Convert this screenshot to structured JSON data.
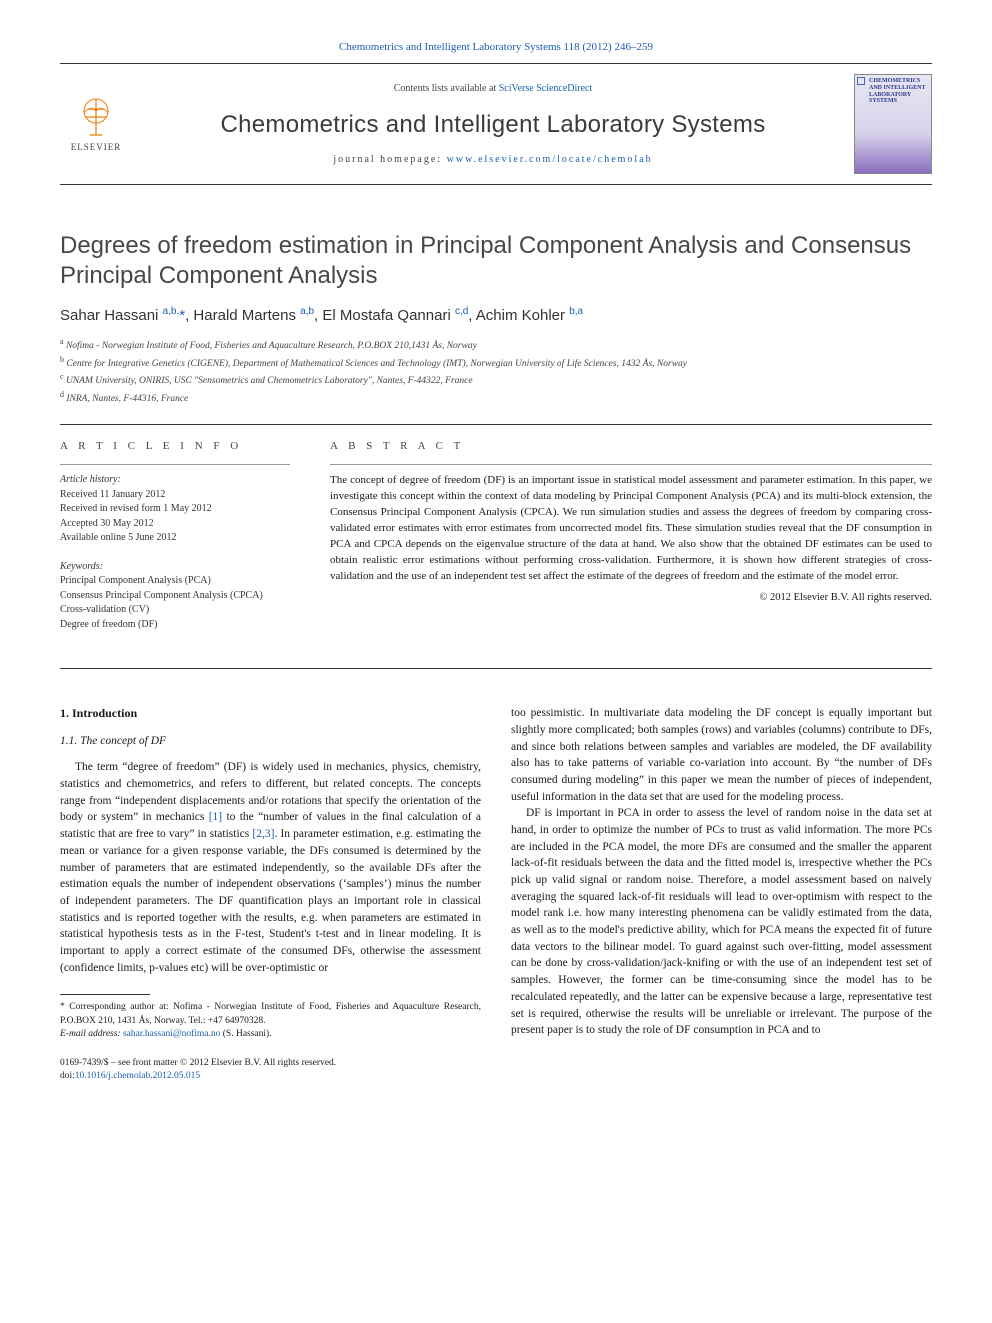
{
  "top_citation": "Chemometrics and Intelligent Laboratory Systems 118 (2012) 246–259",
  "header": {
    "contents_prefix": "Contents lists available at ",
    "contents_link": "SciVerse ScienceDirect",
    "journal_title": "Chemometrics and Intelligent Laboratory Systems",
    "homepage_prefix": "journal homepage: ",
    "homepage_link": "www.elsevier.com/locate/chemolab",
    "publisher": "ELSEVIER",
    "cover_text": "CHEMOMETRICS AND INTELLIGENT LABORATORY SYSTEMS"
  },
  "article": {
    "title": "Degrees of freedom estimation in Principal Component Analysis and Consensus Principal Component Analysis",
    "authors_html": "Sahar Hassani <sup>a,b,</sup><span class='star'>*</span>, Harald Martens <sup>a,b</sup>, El Mostafa Qannari <sup>c,d</sup>, Achim Kohler <sup>b,a</sup>",
    "affiliations": [
      {
        "key": "a",
        "text": "Nofima - Norwegian Institute of Food, Fisheries and Aquaculture Research, P.O.BOX 210,1431 Ås, Norway"
      },
      {
        "key": "b",
        "text": "Centre for Integrative Genetics (CIGENE), Department of Mathematical Sciences and Technology (IMT), Norwegian University of Life Sciences, 1432 Ås, Norway"
      },
      {
        "key": "c",
        "text": "UNAM University, ONIRIS, USC \"Sensometrics and Chemometrics Laboratory\", Nantes, F-44322, France"
      },
      {
        "key": "d",
        "text": "INRA, Nantes, F-44316, France"
      }
    ]
  },
  "article_info": {
    "heading": "A R T I C L E   I N F O",
    "history_label": "Article history:",
    "history": [
      "Received 11 January 2012",
      "Received in revised form 1 May 2012",
      "Accepted 30 May 2012",
      "Available online 5 June 2012"
    ],
    "keywords_label": "Keywords:",
    "keywords": [
      "Principal Component Analysis (PCA)",
      "Consensus Principal Component Analysis (CPCA)",
      "Cross-validation (CV)",
      "Degree of freedom (DF)"
    ]
  },
  "abstract": {
    "heading": "A B S T R A C T",
    "text": "The concept of degree of freedom (DF) is an important issue in statistical model assessment and parameter estimation. In this paper, we investigate this concept within the context of data modeling by Principal Component Analysis (PCA) and its multi-block extension, the Consensus Principal Component Analysis (CPCA). We run simulation studies and assess the degrees of freedom by comparing cross-validated error estimates with error estimates from uncorrected model fits. These simulation studies reveal that the DF consumption in PCA and CPCA depends on the eigenvalue structure of the data at hand. We also show that the obtained DF estimates can be used to obtain realistic error estimations without performing cross-validation. Furthermore, it is shown how different strategies of cross-validation and the use of an independent test set affect the estimate of the degrees of freedom and the estimate of the model error.",
    "copyright": "© 2012 Elsevier B.V. All rights reserved."
  },
  "body": {
    "section_number": "1. Introduction",
    "subsection": "1.1. The concept of DF",
    "col1": "The term “degree of freedom” (DF) is widely used in mechanics, physics, chemistry, statistics and chemometrics, and refers to different, but related concepts. The concepts range from “independent displacements and/or rotations that specify the orientation of the body or system” in mechanics [1] to the “number of values in the final calculation of a statistic that are free to vary” in statistics [2,3]. In parameter estimation, e.g. estimating the mean or variance for a given response variable, the DFs consumed is determined by the number of parameters that are estimated independently, so the available DFs after the estimation equals the number of independent observations (‘samples’) minus the number of independent parameters. The DF quantification plays an important role in classical statistics and is reported together with the results, e.g. when parameters are estimated in statistical hypothesis tests as in the F-test, Student's t-test and in linear modeling. It is important to apply a correct estimate of the consumed DFs, otherwise the assessment (confidence limits, p-values etc) will be over-optimistic or",
    "col2": "too pessimistic. In multivariate data modeling the DF concept is equally important but slightly more complicated; both samples (rows) and variables (columns) contribute to DFs, and since both relations between samples and variables are modeled, the DF availability also has to take patterns of variable co-variation into account. By “the number of DFs consumed during modeling” in this paper we mean the number of pieces of independent, useful information in the data set that are used for the modeling process.",
    "col2b": "DF is important in PCA in order to assess the level of random noise in the data set at hand, in order to optimize the number of PCs to trust as valid information. The more PCs are included in the PCA model, the more DFs are consumed and the smaller the apparent lack-of-fit residuals between the data and the fitted model is, irrespective whether the PCs pick up valid signal or random noise. Therefore, a model assessment based on naively averaging the squared lack-of-fit residuals will lead to over-optimism with respect to the model rank i.e. how many interesting phenomena can be validly estimated from the data, as well as to the model's predictive ability, which for PCA means the expected fit of future data vectors to the bilinear model. To guard against such over-fitting, model assessment can be done by cross-validation/jack-knifing or with the use of an independent test set of samples. However, the former can be time-consuming since the model has to be recalculated repeatedly, and the latter can be expensive because a large, representative test set is required, otherwise the results will be unreliable or irrelevant. The purpose of the present paper is to study the role of DF consumption in PCA and to"
  },
  "footnote": {
    "text": "* Corresponding author at: Nofima - Norwegian Institute of Food, Fisheries and Aquaculture Research, P.O.BOX 210, 1431 Ås, Norway. Tel.: +47 64970328.",
    "email_label": "E-mail address: ",
    "email": "sahar.hassani@nofima.no",
    "email_suffix": " (S. Hassani)."
  },
  "bottom": {
    "line1": "0169-7439/$ – see front matter © 2012 Elsevier B.V. All rights reserved.",
    "doi_prefix": "doi:",
    "doi": "10.1016/j.chemolab.2012.05.015"
  },
  "colors": {
    "link": "#1a5fb4",
    "text": "#1a1a1a",
    "heading": "#474747",
    "publisher_orange": "#ee7d00"
  }
}
